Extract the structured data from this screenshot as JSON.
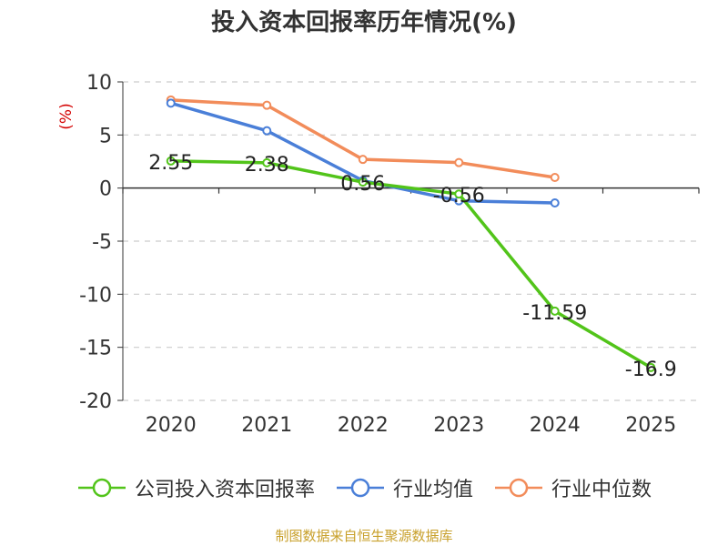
{
  "chart_data": {
    "type": "line",
    "title": "投入资本回报率历年情况(%)",
    "ylabel": "(%)",
    "xlabel": "",
    "categories": [
      "2020",
      "2021",
      "2022",
      "2023",
      "2024",
      "2025"
    ],
    "ylim": [
      -20,
      10
    ],
    "yticks": [
      10,
      5,
      0,
      -5,
      -10,
      -15,
      -20
    ],
    "grid": true,
    "legend_position": "bottom",
    "series": [
      {
        "name": "公司投入资本回报率",
        "color": "#52c41a",
        "values": [
          2.55,
          2.38,
          0.56,
          -0.56,
          -11.59,
          -16.9
        ],
        "labels": [
          "2.55",
          "2.38",
          "0.56",
          "-0.56",
          "-11.59",
          "-16.9"
        ]
      },
      {
        "name": "行业均值",
        "color": "#4a7fd8",
        "values": [
          8.0,
          5.4,
          0.7,
          -1.2,
          -1.4,
          null
        ]
      },
      {
        "name": "行业中位数",
        "color": "#f28c5a",
        "values": [
          8.3,
          7.8,
          2.7,
          2.4,
          1.0,
          null
        ]
      }
    ]
  },
  "source": "制图数据来自恒生聚源数据库"
}
